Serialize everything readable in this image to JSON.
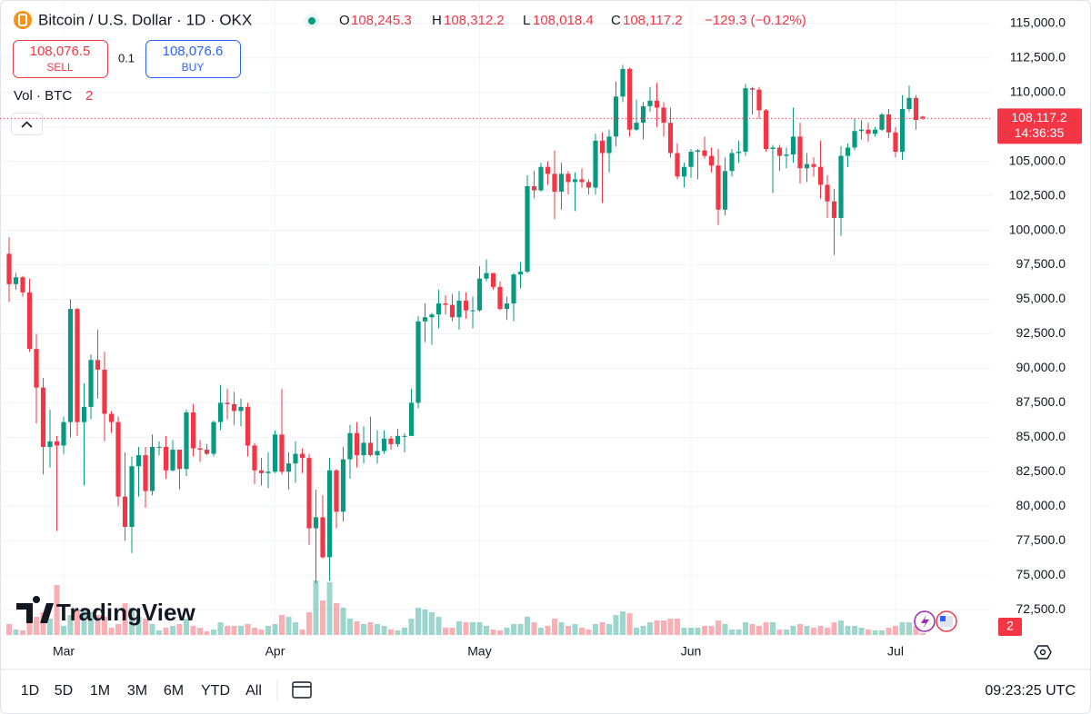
{
  "header": {
    "symbol": "Bitcoin / U.S. Dollar · 1D · OKX",
    "o_key": "O",
    "o": "108,245.3",
    "h_key": "H",
    "h": "108,312.2",
    "l_key": "L",
    "l": "108,018.4",
    "c_key": "C",
    "c": "108,117.2",
    "change": "−129.3 (−0.12%)"
  },
  "trade": {
    "sell_price": "108,076.5",
    "sell": "SELL",
    "qty": "0.1",
    "buy_price": "108,076.6",
    "buy": "BUY"
  },
  "volume_legend": {
    "label": "Vol · BTC",
    "value": "2"
  },
  "logo": "TradingView",
  "badge": "2",
  "toolbar": {
    "ranges": [
      "1D",
      "5D",
      "1M",
      "3M",
      "6M",
      "YTD",
      "All"
    ],
    "time": "09:23:25 UTC"
  },
  "chart_data": {
    "type": "candlestick",
    "categories": [
      null,
      null,
      null,
      null,
      null,
      null,
      null,
      null,
      "Mar",
      null,
      null,
      null,
      null,
      null,
      null,
      null,
      null,
      null,
      null,
      null,
      null,
      null,
      null,
      null,
      null,
      null,
      null,
      null,
      null,
      null,
      null,
      null,
      null,
      null,
      null,
      null,
      null,
      null,
      null,
      "Apr",
      null,
      null,
      null,
      null,
      null,
      null,
      null,
      null,
      null,
      null,
      null,
      null,
      null,
      null,
      null,
      null,
      null,
      null,
      null,
      null,
      null,
      null,
      null,
      null,
      null,
      null,
      null,
      null,
      null,
      "May",
      null,
      null,
      null,
      null,
      null,
      null,
      null,
      null,
      null,
      null,
      null,
      null,
      null,
      null,
      null,
      null,
      null,
      null,
      null,
      null,
      null,
      null,
      null,
      null,
      null,
      null,
      null,
      null,
      null,
      null,
      "Jun",
      null,
      null,
      null,
      null,
      null,
      null,
      null,
      null,
      null,
      null,
      null,
      null,
      null,
      null,
      null,
      null,
      null,
      null,
      null,
      null,
      null,
      null,
      null,
      null,
      null,
      null,
      null,
      null,
      null,
      "Jul",
      null,
      null,
      null,
      null
    ],
    "open": [
      98300,
      96100,
      96600,
      95500,
      91400,
      88600,
      84300,
      84700,
      84400,
      86100,
      94300,
      86100,
      87200,
      90600,
      89900,
      86700,
      86100,
      80700,
      78500,
      82900,
      83700,
      81100,
      84300,
      84300,
      82600,
      84100,
      82700,
      86800,
      84200,
      84100,
      83800,
      86100,
      87500,
      87400,
      86900,
      87200,
      84400,
      82600,
      82400,
      82500,
      85200,
      82500,
      83100,
      83800,
      83500,
      78400,
      79200,
      76300,
      82600,
      79600,
      83400,
      85300,
      83700,
      84600,
      83700,
      84000,
      84900,
      84500,
      85100,
      85100,
      87500,
      93400,
      93700,
      93900,
      94700,
      94600,
      93700,
      94900,
      94200,
      94200,
      96500,
      96900,
      95900,
      94300,
      94700,
      96800,
      97000,
      103200,
      102900,
      104600,
      104100,
      102800,
      104100,
      103500,
      103700,
      103500,
      103100,
      106500,
      105600,
      106800,
      109700,
      111700,
      107300,
      107800,
      109000,
      109400,
      108900,
      107800,
      105600,
      103900,
      104600,
      105700,
      105800,
      105400,
      104700,
      101500,
      104300,
      105600,
      105700,
      110300,
      110200,
      108700,
      105900,
      106000,
      105400,
      105500,
      106800,
      104500,
      104800,
      104600,
      103300,
      102100,
      100900,
      105400,
      106000,
      107200,
      107300,
      107000,
      107300,
      108400,
      107100,
      105700,
      108800,
      109600,
      108245.3
    ],
    "high": [
      99500,
      96900,
      96700,
      96500,
      92500,
      89300,
      87000,
      85100,
      86500,
      95000,
      94400,
      88900,
      91000,
      92800,
      91200,
      86900,
      86500,
      83900,
      83600,
      84300,
      84300,
      85200,
      84700,
      85100,
      84800,
      84100,
      87000,
      87400,
      84800,
      84500,
      86200,
      88800,
      88500,
      88300,
      87800,
      87500,
      84600,
      83500,
      83900,
      85500,
      88500,
      83900,
      84700,
      84200,
      83800,
      81200,
      80800,
      83500,
      82700,
      84300,
      85900,
      86100,
      85800,
      86500,
      85500,
      85500,
      85100,
      85600,
      85300,
      88500,
      93800,
      94700,
      94000,
      95700,
      95300,
      95400,
      95600,
      95500,
      95200,
      97400,
      97900,
      96900,
      96300,
      95200,
      96900,
      97700,
      104000,
      104300,
      104900,
      105000,
      105800,
      104900,
      104300,
      104200,
      104500,
      103700,
      107000,
      107100,
      107300,
      110800,
      112000,
      111800,
      109500,
      109300,
      110400,
      110700,
      109300,
      108900,
      106300,
      104900,
      105900,
      105900,
      106800,
      106000,
      105900,
      105300,
      105900,
      106500,
      110600,
      110400,
      110400,
      108800,
      106200,
      106200,
      106000,
      108900,
      107800,
      105600,
      105300,
      106500,
      104000,
      103000,
      106100,
      106300,
      108100,
      108000,
      107800,
      107500,
      108500,
      108800,
      107500,
      109800,
      110500,
      109800,
      108312.2
    ],
    "low": [
      94800,
      95700,
      95200,
      91200,
      86000,
      82300,
      82800,
      78200,
      83800,
      85000,
      85100,
      81500,
      86300,
      87800,
      84700,
      85300,
      80000,
      77500,
      76600,
      80700,
      79900,
      80800,
      83700,
      82000,
      82500,
      81200,
      82200,
      83600,
      83200,
      83700,
      83600,
      85500,
      86300,
      85900,
      85800,
      83600,
      81600,
      81500,
      81300,
      82400,
      82300,
      81200,
      81700,
      82400,
      77200,
      74400,
      76200,
      74600,
      78400,
      78900,
      82000,
      82800,
      83100,
      83600,
      83100,
      83800,
      84100,
      84300,
      83900,
      85100,
      87100,
      91900,
      91700,
      92900,
      93900,
      93400,
      92800,
      93600,
      92900,
      94100,
      96300,
      95700,
      94200,
      93500,
      93400,
      95800,
      96900,
      102300,
      102800,
      103300,
      100800,
      101500,
      102600,
      101400,
      103100,
      102600,
      102600,
      102000,
      104200,
      106100,
      109300,
      106800,
      107200,
      106600,
      108600,
      107500,
      106800,
      105300,
      103700,
      103100,
      103800,
      103700,
      105200,
      104200,
      100400,
      101100,
      103900,
      104900,
      105400,
      108400,
      108100,
      105700,
      102700,
      104300,
      104500,
      104900,
      103400,
      103500,
      103900,
      102300,
      100900,
      98200,
      99600,
      104600,
      105800,
      106600,
      106400,
      106800,
      107200,
      106700,
      105300,
      105100,
      108600,
      107300,
      108018.4
    ],
    "close": [
      96100,
      96600,
      95500,
      91400,
      88600,
      84300,
      84700,
      84400,
      86100,
      94300,
      86100,
      87200,
      90600,
      89900,
      86700,
      86100,
      80700,
      78500,
      82900,
      83700,
      81100,
      84300,
      84300,
      82600,
      84100,
      82700,
      86800,
      84200,
      84100,
      83800,
      86100,
      87500,
      87400,
      86900,
      87200,
      84400,
      82600,
      82400,
      82500,
      85200,
      82500,
      83100,
      83800,
      83500,
      78400,
      79200,
      76300,
      82600,
      79600,
      83400,
      85300,
      83700,
      84600,
      83700,
      84000,
      84900,
      84500,
      85100,
      85100,
      87500,
      93400,
      93700,
      93900,
      94700,
      94600,
      93700,
      94900,
      94200,
      94200,
      96500,
      96900,
      95900,
      94300,
      94700,
      96800,
      97000,
      103200,
      102900,
      104600,
      104100,
      102800,
      104100,
      103500,
      103700,
      103500,
      103100,
      106500,
      105600,
      106800,
      109700,
      111700,
      107300,
      107800,
      109000,
      109400,
      108900,
      107800,
      105600,
      103900,
      104600,
      105700,
      105800,
      105400,
      104700,
      101500,
      104300,
      105600,
      105700,
      110300,
      110200,
      108700,
      105900,
      106000,
      105400,
      105500,
      106800,
      104500,
      104800,
      104600,
      103300,
      102100,
      100900,
      105400,
      106000,
      107200,
      107300,
      107000,
      107300,
      108400,
      107100,
      105700,
      108800,
      109600,
      108000,
      108117.2
    ],
    "volume": [
      12,
      6,
      5,
      14,
      20,
      25,
      18,
      55,
      10,
      22,
      28,
      30,
      25,
      22,
      20,
      8,
      12,
      35,
      30,
      20,
      18,
      12,
      5,
      8,
      10,
      12,
      18,
      10,
      8,
      4,
      6,
      14,
      10,
      10,
      10,
      12,
      8,
      6,
      10,
      12,
      22,
      20,
      14,
      6,
      25,
      60,
      38,
      58,
      35,
      30,
      18,
      15,
      12,
      14,
      12,
      10,
      6,
      5,
      8,
      18,
      30,
      28,
      25,
      20,
      8,
      8,
      15,
      14,
      14,
      14,
      10,
      6,
      5,
      8,
      12,
      12,
      20,
      14,
      8,
      10,
      18,
      14,
      10,
      12,
      8,
      6,
      12,
      14,
      12,
      22,
      26,
      24,
      8,
      10,
      14,
      16,
      16,
      18,
      18,
      8,
      8,
      8,
      10,
      10,
      16,
      12,
      6,
      6,
      14,
      12,
      10,
      14,
      14,
      6,
      6,
      10,
      12,
      10,
      8,
      10,
      8,
      14,
      16,
      10,
      10,
      8,
      6,
      5,
      5,
      8,
      10,
      14,
      14,
      10,
      2
    ],
    "up_color": "#089981",
    "down_color": "#f23645",
    "ylim": [
      70600,
      116700
    ],
    "yticks": [
      {
        "value": 72500,
        "label": "72,500.0"
      },
      {
        "value": 75000,
        "label": "75,000.0"
      },
      {
        "value": 77500,
        "label": "77,500.0"
      },
      {
        "value": 80000,
        "label": "80,000.0"
      },
      {
        "value": 82500,
        "label": "82,500.0"
      },
      {
        "value": 85000,
        "label": "85,000.0"
      },
      {
        "value": 87500,
        "label": "87,500.0"
      },
      {
        "value": 90000,
        "label": "90,000.0"
      },
      {
        "value": 92500,
        "label": "92,500.0"
      },
      {
        "value": 95000,
        "label": "95,000.0"
      },
      {
        "value": 97500,
        "label": "97,500.0"
      },
      {
        "value": 100000,
        "label": "100,000.0"
      },
      {
        "value": 102500,
        "label": "102,500.0"
      },
      {
        "value": 105000,
        "label": "105,000.0"
      },
      {
        "value": 107500,
        "label": "107,500.0"
      },
      {
        "value": 110000,
        "label": "110,000.0"
      },
      {
        "value": 112500,
        "label": "112,500.0"
      },
      {
        "value": 115000,
        "label": "115,000.0"
      }
    ],
    "grid": true,
    "last_price_label": "108,117.2",
    "countdown": "14:36:35"
  }
}
